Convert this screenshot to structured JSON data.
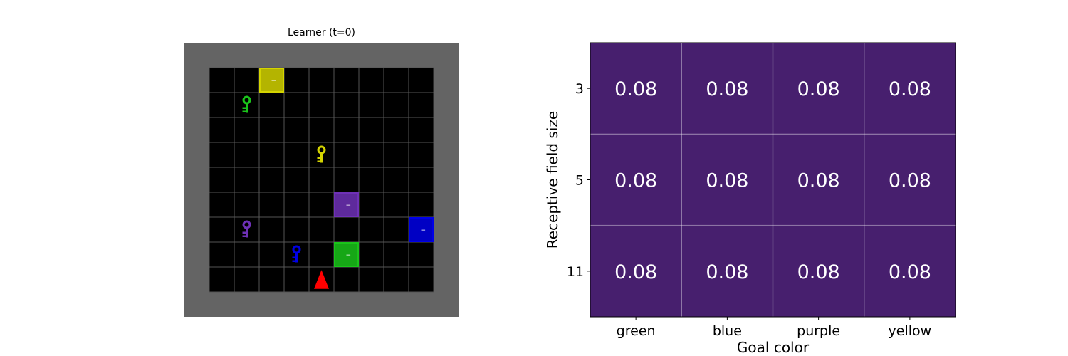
{
  "gridworld": {
    "title": "Learner (t=0)",
    "cols": 9,
    "rows": 9,
    "colors": {
      "background": "#646464",
      "floor": "#000000",
      "gridline": "#555555",
      "yellow": "#d4d400",
      "green": "#1ac41a",
      "purple": "#6f31b7",
      "blue": "#0000e6",
      "agent": "#ff0000"
    },
    "doors": [
      {
        "color": "yellow",
        "col": 2,
        "row": 0
      },
      {
        "color": "purple",
        "col": 5,
        "row": 5
      },
      {
        "color": "blue",
        "col": 8,
        "row": 6
      },
      {
        "color": "green",
        "col": 5,
        "row": 7
      }
    ],
    "keys": [
      {
        "color": "green",
        "col": 1,
        "row": 1
      },
      {
        "color": "yellow",
        "col": 4,
        "row": 3
      },
      {
        "color": "purple",
        "col": 1,
        "row": 6
      },
      {
        "color": "blue",
        "col": 3,
        "row": 7
      }
    ],
    "agent": {
      "col": 4,
      "row": 8,
      "direction": "up"
    }
  },
  "chart_data": {
    "type": "heatmap",
    "xlabel": "Goal color",
    "ylabel": "Receptive field size",
    "x_categories": [
      "green",
      "blue",
      "purple",
      "yellow"
    ],
    "y_categories": [
      "3",
      "5",
      "11"
    ],
    "values": [
      [
        0.08,
        0.08,
        0.08,
        0.08
      ],
      [
        0.08,
        0.08,
        0.08,
        0.08
      ],
      [
        0.08,
        0.08,
        0.08,
        0.08
      ]
    ],
    "value_labels": [
      [
        "0.08",
        "0.08",
        "0.08",
        "0.08"
      ],
      [
        "0.08",
        "0.08",
        "0.08",
        "0.08"
      ],
      [
        "0.08",
        "0.08",
        "0.08",
        "0.08"
      ]
    ],
    "cell_color": "#471f6e",
    "cell_text_color": "#ffffff",
    "grid": true
  }
}
